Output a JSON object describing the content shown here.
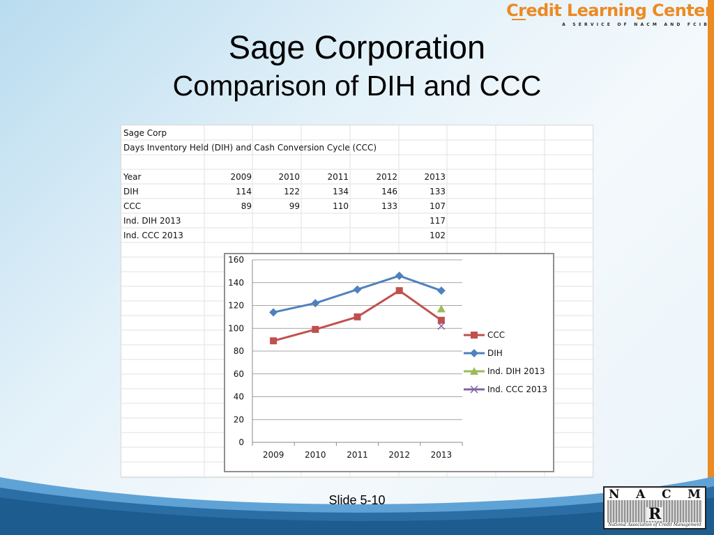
{
  "logo": {
    "name": "Credit Learning Center",
    "tagline": "A SERVICE OF NACM AND FCIB"
  },
  "title": "Sage Corporation",
  "subtitle": "Comparison of DIH and CCC",
  "sheet": {
    "company": "Sage Corp",
    "description": "Days Inventory Held (DIH) and Cash Conversion Cycle (CCC)",
    "rows": [
      {
        "label": "Year",
        "values": [
          "2009",
          "2010",
          "2011",
          "2012",
          "2013"
        ]
      },
      {
        "label": "DIH",
        "values": [
          "114",
          "122",
          "134",
          "146",
          "133"
        ]
      },
      {
        "label": "CCC",
        "values": [
          "89",
          "99",
          "110",
          "133",
          "107"
        ]
      },
      {
        "label": "Ind. DIH 2013",
        "values": [
          "",
          "",
          "",
          "",
          "117"
        ]
      },
      {
        "label": "Ind. CCC  2013",
        "values": [
          "",
          "",
          "",
          "",
          "102"
        ]
      }
    ]
  },
  "chart_data": {
    "type": "line",
    "categories": [
      "2009",
      "2010",
      "2011",
      "2012",
      "2013"
    ],
    "ylim": [
      0,
      160
    ],
    "yticks": [
      0,
      20,
      40,
      60,
      80,
      100,
      120,
      140,
      160
    ],
    "grid": true,
    "legend": "right",
    "series": [
      {
        "name": "CCC",
        "values": [
          89,
          99,
          110,
          133,
          107
        ],
        "color": "#c0504d",
        "marker": "square"
      },
      {
        "name": "DIH",
        "values": [
          114,
          122,
          134,
          146,
          133
        ],
        "color": "#4f81bd",
        "marker": "diamond"
      },
      {
        "name": "Ind. DIH 2013",
        "values": [
          null,
          null,
          null,
          null,
          117
        ],
        "color": "#9bbb59",
        "marker": "triangle"
      },
      {
        "name": "Ind. CCC  2013",
        "values": [
          null,
          null,
          null,
          null,
          102
        ],
        "color": "#8064a2",
        "marker": "x"
      }
    ]
  },
  "footer": {
    "slide_label": "Slide 5-10",
    "nacm_letters": [
      "N",
      "A",
      "C",
      "M"
    ],
    "nacm_caption": "National Association of Credit Management"
  },
  "colors": {
    "accent_orange": "#ec8a24",
    "wave_dark": "#1d5c8f",
    "wave_light": "#5fa3d6"
  }
}
